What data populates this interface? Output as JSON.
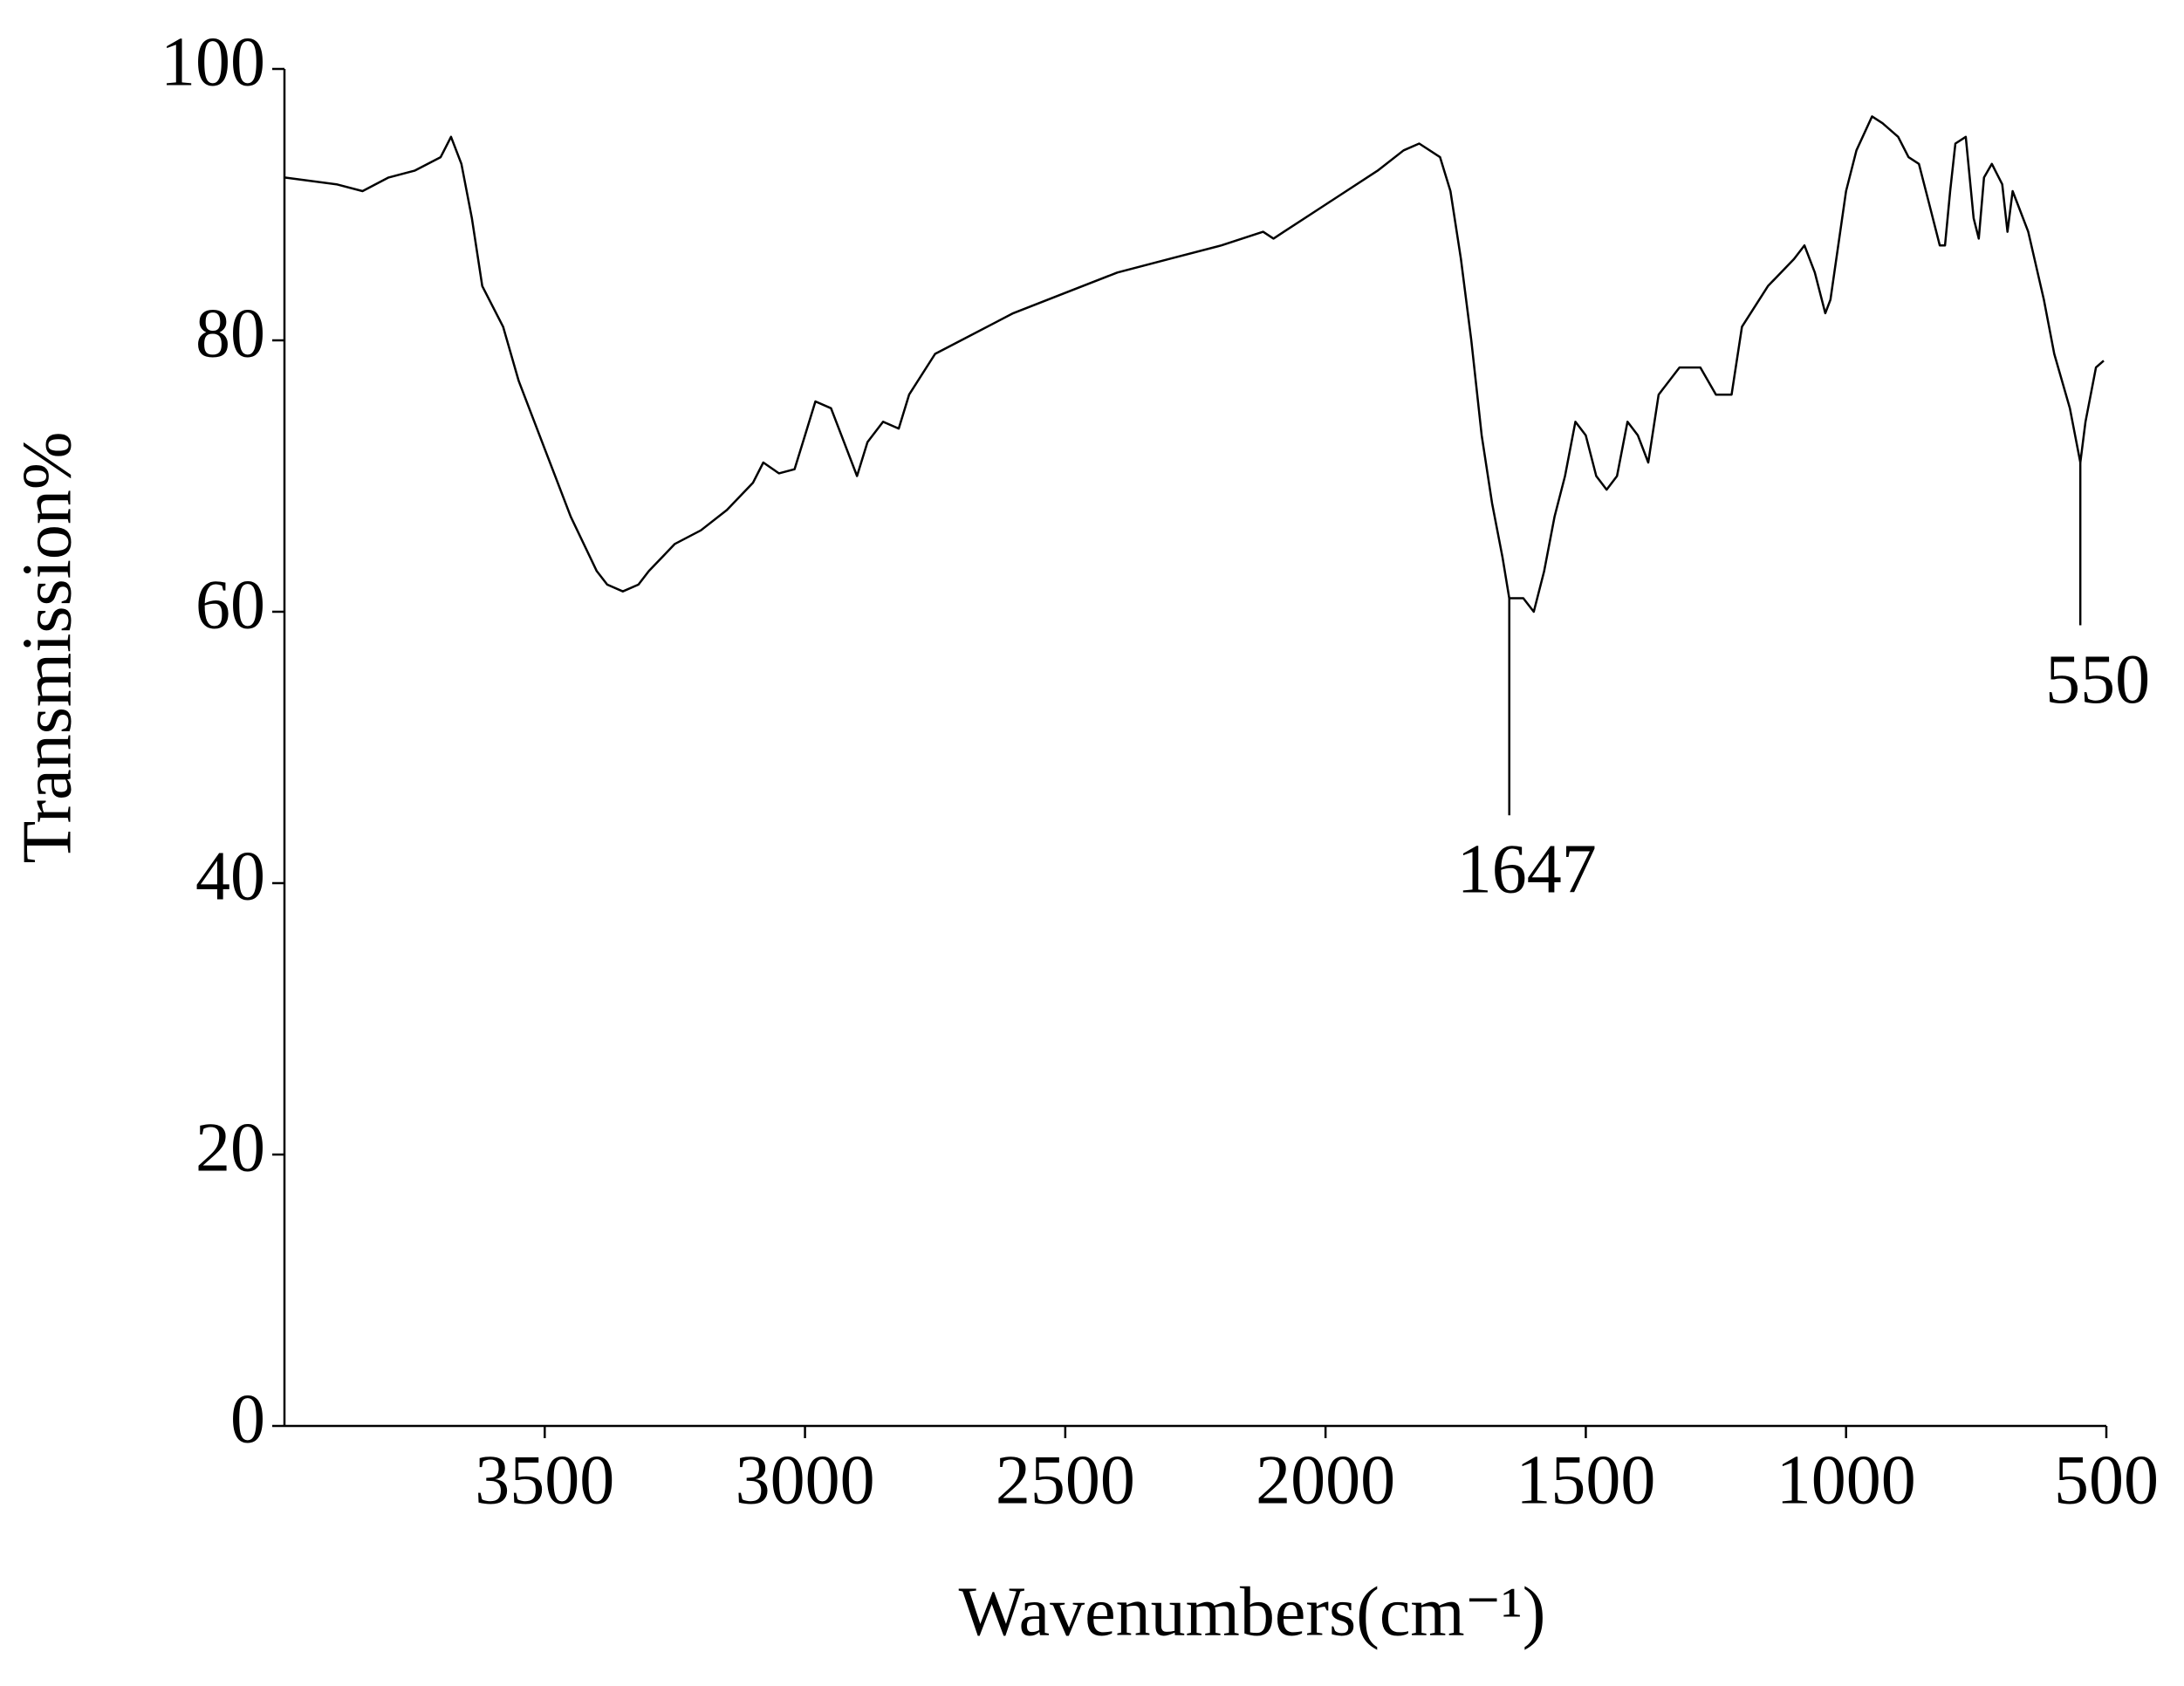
{
  "chart_data": {
    "type": "line",
    "x_label": "Wavenumbers(cm⁻¹)",
    "y_label": "Transmission%",
    "xlim": [
      4000,
      500
    ],
    "ylim": [
      0,
      100
    ],
    "xticks": [
      3500,
      3000,
      2500,
      2000,
      1500,
      1000,
      500
    ],
    "yticks": [
      0,
      20,
      40,
      60,
      80,
      100
    ],
    "series": [
      {
        "color": "#000000",
        "x": [
          4000,
          3900,
          3850,
          3800,
          3750,
          3700,
          3680,
          3660,
          3640,
          3620,
          3580,
          3550,
          3500,
          3450,
          3400,
          3380,
          3350,
          3320,
          3300,
          3250,
          3200,
          3150,
          3100,
          3080,
          3050,
          3020,
          3000,
          2980,
          2950,
          2920,
          2900,
          2880,
          2850,
          2820,
          2800,
          2750,
          2700,
          2600,
          2500,
          2400,
          2300,
          2200,
          2120,
          2100,
          2080,
          2000,
          1900,
          1850,
          1820,
          1780,
          1760,
          1740,
          1720,
          1700,
          1680,
          1660,
          1647,
          1620,
          1600,
          1580,
          1560,
          1540,
          1520,
          1500,
          1480,
          1460,
          1440,
          1420,
          1400,
          1380,
          1360,
          1320,
          1280,
          1250,
          1220,
          1200,
          1150,
          1100,
          1080,
          1060,
          1040,
          1030,
          1000,
          980,
          950,
          930,
          900,
          880,
          860,
          840,
          820,
          810,
          800,
          790,
          770,
          755,
          745,
          735,
          720,
          700,
          690,
          680,
          670,
          650,
          620,
          600,
          570,
          550,
          540,
          520,
          505
        ],
        "values": [
          92,
          91.5,
          91,
          92,
          92.5,
          93.5,
          95,
          93,
          89,
          84,
          81,
          77,
          72,
          67,
          63,
          62,
          61.5,
          62,
          63,
          65,
          66,
          67.5,
          69.5,
          71,
          70.2,
          70.5,
          73,
          75.5,
          75,
          72,
          70,
          72.5,
          74,
          73.5,
          76,
          79,
          80,
          82,
          83.5,
          85,
          86,
          87,
          88,
          87.5,
          88,
          90,
          92.5,
          94,
          94.5,
          93.5,
          91,
          86,
          80,
          73,
          68,
          64,
          61,
          61,
          60,
          63,
          67,
          70,
          74,
          73,
          70,
          69,
          70,
          74,
          73,
          71,
          76,
          78,
          78,
          76,
          76,
          81,
          84,
          86,
          87,
          85,
          82,
          83,
          91,
          94,
          96.5,
          96,
          95,
          93.5,
          93,
          90,
          87,
          87,
          91,
          94.5,
          95,
          89,
          87.5,
          92,
          93,
          91.5,
          88,
          91,
          90,
          88,
          83,
          79,
          75,
          71,
          74,
          78,
          78.5
        ]
      }
    ],
    "annotations": [
      {
        "text": "1647",
        "x": 1647,
        "y_top": 61,
        "y_bottom": 45
      },
      {
        "text": "550",
        "x": 550,
        "y_top": 71,
        "y_bottom": 59
      }
    ]
  }
}
